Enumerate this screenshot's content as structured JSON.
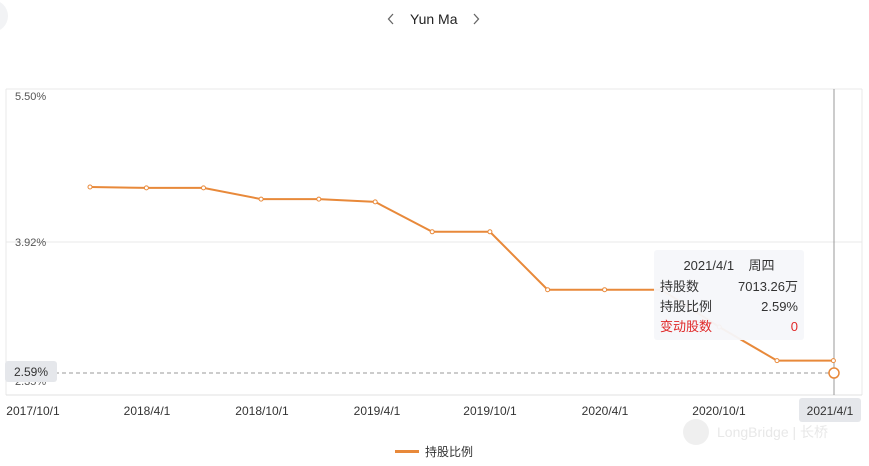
{
  "header": {
    "person_name": "Yun Ma"
  },
  "colors": {
    "line": "#e8893a",
    "change_red": "#e02828",
    "grid": "#e8e8e8",
    "crosshair": "#999999"
  },
  "icons": {
    "prev": "chevron-left-icon",
    "next": "chevron-right-icon"
  },
  "chart_data": {
    "type": "line",
    "title": "",
    "xlabel": "",
    "ylabel": "",
    "x_ticks": [
      "2017/10/1",
      "2018/4/1",
      "2018/10/1",
      "2019/4/1",
      "2019/10/1",
      "2020/4/1",
      "2020/10/1",
      "2021/4/1"
    ],
    "y_ticks": [
      "5.50%",
      "3.92%",
      "2.35%"
    ],
    "ylim": [
      2.35,
      5.5
    ],
    "series": [
      {
        "name": "持股比例",
        "x": [
          "2017/12/31",
          "2018/3/31",
          "2018/6/30",
          "2018/9/30",
          "2018/12/31",
          "2019/3/31",
          "2019/6/30",
          "2019/9/30",
          "2019/12/31",
          "2020/3/31",
          "2020/6/30",
          "2020/9/30",
          "2020/12/31",
          "2021/3/31",
          "2021/4/1"
        ],
        "values": [
          4.45,
          4.44,
          4.44,
          4.32,
          4.32,
          4.29,
          3.97,
          3.97,
          3.35,
          3.35,
          3.35,
          2.95,
          2.59,
          2.59,
          2.59
        ]
      }
    ],
    "grid": true,
    "legend_position": "bottom-center",
    "hover_value_label": "2.59%",
    "hover_x_label": "2021/4/1"
  },
  "tooltip": {
    "date": "2021/4/1",
    "weekday": "周四",
    "rows": [
      {
        "label": "持股数",
        "value": "7013.26万"
      },
      {
        "label": "持股比例",
        "value": "2.59%"
      },
      {
        "label": "变动股数",
        "value": "0"
      }
    ]
  },
  "watermark": {
    "text": "LongBridge | 长桥"
  }
}
